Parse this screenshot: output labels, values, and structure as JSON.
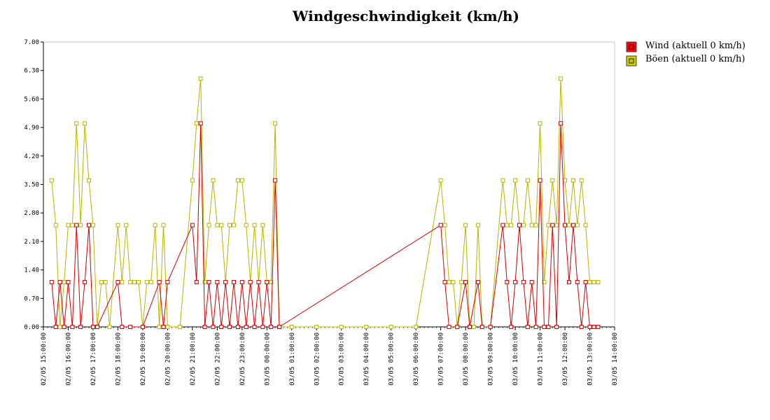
{
  "chart_data": {
    "type": "line",
    "title": "Windgeschwindigkeit (km/h)",
    "xlabel": "",
    "ylabel": "",
    "ylim": [
      0,
      7.0
    ],
    "xlim": [
      "02/05 15:00:00",
      "03/05 14:00:00"
    ],
    "grid": false,
    "legend_position": "right",
    "y_ticks": [
      "0.00",
      "0.70",
      "1.40",
      "2.10",
      "2.80",
      "3.50",
      "4.20",
      "4.90",
      "5.60",
      "6.30",
      "7.00"
    ],
    "x_ticks": [
      "02/05 15:00:00",
      "02/05 16:00:00",
      "02/05 17:00:00",
      "02/05 18:00:00",
      "02/05 19:00:00",
      "02/05 20:00:00",
      "02/05 21:00:00",
      "02/05 22:00:00",
      "02/05 23:00:00",
      "03/05 00:00:00",
      "03/05 01:00:00",
      "03/05 02:00:00",
      "03/05 03:00:00",
      "03/05 04:00:00",
      "03/05 05:00:00",
      "03/05 06:00:00",
      "03/05 07:00:00",
      "03/05 08:00:00",
      "03/05 09:00:00",
      "03/05 10:00:00",
      "03/05 11:00:00",
      "03/05 12:00:00",
      "03/05 13:00:00",
      "03/05 14:00:00"
    ],
    "series": [
      {
        "name": "Wind (aktuell 0 km/h)",
        "color": "#cc0000",
        "marker_fill": "#ff0000",
        "points": [
          [
            "02/05 15:20",
            1.1
          ],
          [
            "02/05 15:30",
            0
          ],
          [
            "02/05 15:40",
            1.1
          ],
          [
            "02/05 15:50",
            0
          ],
          [
            "02/05 16:00",
            1.1
          ],
          [
            "02/05 16:10",
            0
          ],
          [
            "02/05 16:20",
            2.5
          ],
          [
            "02/05 16:30",
            0
          ],
          [
            "02/05 16:40",
            1.1
          ],
          [
            "02/05 16:50",
            2.5
          ],
          [
            "02/05 17:00",
            0
          ],
          [
            "02/05 17:10",
            0
          ],
          [
            "02/05 18:00",
            1.1
          ],
          [
            "02/05 18:10",
            0
          ],
          [
            "02/05 18:30",
            0
          ],
          [
            "02/05 19:00",
            0
          ],
          [
            "02/05 19:40",
            1.1
          ],
          [
            "02/05 19:50",
            0
          ],
          [
            "02/05 20:00",
            1.1
          ],
          [
            "02/05 21:00",
            2.5
          ],
          [
            "02/05 21:10",
            1.1
          ],
          [
            "02/05 21:20",
            5.0
          ],
          [
            "02/05 21:30",
            0
          ],
          [
            "02/05 21:40",
            1.1
          ],
          [
            "02/05 21:50",
            0
          ],
          [
            "02/05 22:00",
            1.1
          ],
          [
            "02/05 22:10",
            0
          ],
          [
            "02/05 22:20",
            1.1
          ],
          [
            "02/05 22:30",
            0
          ],
          [
            "02/05 22:40",
            1.1
          ],
          [
            "02/05 22:50",
            0
          ],
          [
            "02/05 23:00",
            1.1
          ],
          [
            "02/05 23:10",
            0
          ],
          [
            "02/05 23:20",
            1.1
          ],
          [
            "02/05 23:30",
            0
          ],
          [
            "02/05 23:40",
            1.1
          ],
          [
            "02/05 23:50",
            0
          ],
          [
            "03/05 00:00",
            1.1
          ],
          [
            "03/05 00:10",
            0
          ],
          [
            "03/05 00:20",
            3.6
          ],
          [
            "03/05 00:30",
            0
          ],
          [
            "03/05 07:00",
            2.5
          ],
          [
            "03/05 07:10",
            1.1
          ],
          [
            "03/05 07:20",
            0
          ],
          [
            "03/05 07:40",
            0
          ],
          [
            "03/05 08:00",
            1.1
          ],
          [
            "03/05 08:10",
            0
          ],
          [
            "03/05 08:30",
            1.1
          ],
          [
            "03/05 08:40",
            0
          ],
          [
            "03/05 09:00",
            0
          ],
          [
            "03/05 09:30",
            2.5
          ],
          [
            "03/05 09:40",
            1.1
          ],
          [
            "03/05 09:50",
            0
          ],
          [
            "03/05 10:00",
            1.1
          ],
          [
            "03/05 10:10",
            2.5
          ],
          [
            "03/05 10:20",
            1.1
          ],
          [
            "03/05 10:30",
            0
          ],
          [
            "03/05 10:40",
            1.1
          ],
          [
            "03/05 10:50",
            0
          ],
          [
            "03/05 11:00",
            3.6
          ],
          [
            "03/05 11:10",
            0
          ],
          [
            "03/05 11:20",
            0
          ],
          [
            "03/05 11:30",
            2.5
          ],
          [
            "03/05 11:40",
            0
          ],
          [
            "03/05 11:50",
            5.0
          ],
          [
            "03/05 12:00",
            2.5
          ],
          [
            "03/05 12:10",
            1.1
          ],
          [
            "03/05 12:20",
            2.5
          ],
          [
            "03/05 12:30",
            1.1
          ],
          [
            "03/05 12:40",
            0
          ],
          [
            "03/05 12:50",
            1.1
          ],
          [
            "03/05 13:00",
            0
          ],
          [
            "03/05 13:10",
            0
          ],
          [
            "03/05 13:20",
            0
          ]
        ]
      },
      {
        "name": "Böen (aktuell 0 km/h)",
        "color": "#b5b500",
        "marker_fill": "#cccc00",
        "points": [
          [
            "02/05 15:20",
            3.6
          ],
          [
            "02/05 15:30",
            2.5
          ],
          [
            "02/05 15:40",
            0
          ],
          [
            "02/05 15:50",
            1.1
          ],
          [
            "02/05 16:00",
            2.5
          ],
          [
            "02/05 16:10",
            2.5
          ],
          [
            "02/05 16:20",
            5.0
          ],
          [
            "02/05 16:30",
            2.5
          ],
          [
            "02/05 16:40",
            5.0
          ],
          [
            "02/05 16:50",
            3.6
          ],
          [
            "02/05 17:00",
            2.5
          ],
          [
            "02/05 17:10",
            0
          ],
          [
            "02/05 17:20",
            1.1
          ],
          [
            "02/05 17:30",
            1.1
          ],
          [
            "02/05 17:40",
            0
          ],
          [
            "02/05 18:00",
            2.5
          ],
          [
            "02/05 18:10",
            1.1
          ],
          [
            "02/05 18:20",
            2.5
          ],
          [
            "02/05 18:30",
            1.1
          ],
          [
            "02/05 18:40",
            1.1
          ],
          [
            "02/05 18:50",
            1.1
          ],
          [
            "02/05 19:00",
            0
          ],
          [
            "02/05 19:10",
            1.1
          ],
          [
            "02/05 19:20",
            1.1
          ],
          [
            "02/05 19:30",
            2.5
          ],
          [
            "02/05 19:40",
            0
          ],
          [
            "02/05 19:50",
            2.5
          ],
          [
            "02/05 20:00",
            0
          ],
          [
            "02/05 20:30",
            0
          ],
          [
            "02/05 21:00",
            3.6
          ],
          [
            "02/05 21:10",
            5.0
          ],
          [
            "02/05 21:20",
            6.1
          ],
          [
            "02/05 21:30",
            1.1
          ],
          [
            "02/05 21:40",
            2.5
          ],
          [
            "02/05 21:50",
            3.6
          ],
          [
            "02/05 22:00",
            2.5
          ],
          [
            "02/05 22:10",
            2.5
          ],
          [
            "02/05 22:20",
            1.1
          ],
          [
            "02/05 22:30",
            2.5
          ],
          [
            "02/05 22:40",
            2.5
          ],
          [
            "02/05 22:50",
            3.6
          ],
          [
            "02/05 23:00",
            3.6
          ],
          [
            "02/05 23:10",
            2.5
          ],
          [
            "02/05 23:20",
            1.1
          ],
          [
            "02/05 23:30",
            2.5
          ],
          [
            "02/05 23:40",
            1.1
          ],
          [
            "02/05 23:50",
            2.5
          ],
          [
            "03/05 00:00",
            1.1
          ],
          [
            "03/05 00:10",
            1.1
          ],
          [
            "03/05 00:20",
            5.0
          ],
          [
            "03/05 00:30",
            0
          ],
          [
            "03/05 01:00",
            0
          ],
          [
            "03/05 02:00",
            0
          ],
          [
            "03/05 03:00",
            0
          ],
          [
            "03/05 04:00",
            0
          ],
          [
            "03/05 05:00",
            0
          ],
          [
            "03/05 06:00",
            0
          ],
          [
            "03/05 07:00",
            3.6
          ],
          [
            "03/05 07:10",
            2.5
          ],
          [
            "03/05 07:20",
            1.1
          ],
          [
            "03/05 07:30",
            1.1
          ],
          [
            "03/05 07:40",
            0
          ],
          [
            "03/05 07:50",
            1.1
          ],
          [
            "03/05 08:00",
            2.5
          ],
          [
            "03/05 08:10",
            0
          ],
          [
            "03/05 08:20",
            0
          ],
          [
            "03/05 08:30",
            2.5
          ],
          [
            "03/05 08:40",
            0
          ],
          [
            "03/05 09:00",
            0
          ],
          [
            "03/05 09:30",
            3.6
          ],
          [
            "03/05 09:40",
            2.5
          ],
          [
            "03/05 09:50",
            2.5
          ],
          [
            "03/05 10:00",
            3.6
          ],
          [
            "03/05 10:10",
            2.5
          ],
          [
            "03/05 10:20",
            2.5
          ],
          [
            "03/05 10:30",
            3.6
          ],
          [
            "03/05 10:40",
            2.5
          ],
          [
            "03/05 10:50",
            2.5
          ],
          [
            "03/05 11:00",
            5.0
          ],
          [
            "03/05 11:10",
            1.1
          ],
          [
            "03/05 11:20",
            2.5
          ],
          [
            "03/05 11:30",
            3.6
          ],
          [
            "03/05 11:40",
            2.5
          ],
          [
            "03/05 11:50",
            6.1
          ],
          [
            "03/05 12:00",
            3.6
          ],
          [
            "03/05 12:10",
            2.5
          ],
          [
            "03/05 12:20",
            3.6
          ],
          [
            "03/05 12:30",
            2.5
          ],
          [
            "03/05 12:40",
            3.6
          ],
          [
            "03/05 12:50",
            2.5
          ],
          [
            "03/05 13:00",
            1.1
          ],
          [
            "03/05 13:10",
            1.1
          ],
          [
            "03/05 13:20",
            1.1
          ]
        ]
      }
    ]
  }
}
